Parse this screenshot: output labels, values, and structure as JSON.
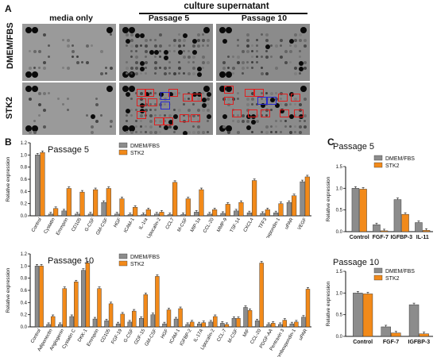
{
  "panel_labels": {
    "a": "A",
    "b": "B",
    "c": "C"
  },
  "panel_a": {
    "group_header": "culture supernatant",
    "col_headers": [
      "media only",
      "Passage 5",
      "Passage 10"
    ],
    "row_labels": [
      "DMEM/FBS",
      "STK2"
    ]
  },
  "colors": {
    "dmem": "#8c8c8c",
    "stk2": "#f28a1a",
    "highlight_red": "#e02020",
    "highlight_blue": "#2a2ad0"
  },
  "chart_data": [
    {
      "type": "bar",
      "title": "Passage 5",
      "ylabel": "Relative expression",
      "ylim": [
        0,
        1.2
      ],
      "yticks": [
        "0.0",
        "0.2",
        "0.4",
        "0.6",
        "0.8",
        "1.0",
        "1.2"
      ],
      "categories": [
        "Control",
        "Cystatin",
        "Emmprin",
        "CD105",
        "G-CSF",
        "GM-CSF",
        "HGF",
        "ICAM-1",
        "IL-1ra",
        "Lipocalin-2",
        "CCL7",
        "M-CSF",
        "MIP-1a",
        "CCL-20",
        "MMP-9",
        "TSF-14",
        "CXCL4",
        "TFF3",
        "Thrombospondin-1",
        "uPAR",
        "VEGF"
      ],
      "series": [
        {
          "name": "DMEM/FBS",
          "values": [
            1.0,
            0.03,
            0.08,
            0.03,
            0.03,
            0.22,
            0.03,
            0.02,
            0.02,
            0.03,
            0.02,
            0.02,
            0.06,
            0.03,
            0.04,
            0.08,
            0.05,
            0.04,
            0.05,
            0.22,
            0.56
          ]
        },
        {
          "name": "STK2",
          "values": [
            1.04,
            0.12,
            0.45,
            0.39,
            0.43,
            0.45,
            0.28,
            0.14,
            0.1,
            0.06,
            0.55,
            0.28,
            0.43,
            0.1,
            0.19,
            0.22,
            0.58,
            0.1,
            0.2,
            0.33,
            0.64
          ]
        }
      ],
      "legend": "top-center"
    },
    {
      "type": "bar",
      "title": "Passage 10",
      "ylabel": "Relative expression",
      "ylim": [
        0,
        1.2
      ],
      "yticks": [
        "0.0",
        "0.2",
        "0.4",
        "0.6",
        "0.8",
        "1.0",
        "1.2"
      ],
      "categories": [
        "Control",
        "Adiponectin",
        "Angiogenin",
        "Cystatin C",
        "DKK-1",
        "Emmprin",
        "CD105",
        "FGF-19",
        "G-CSF",
        "GDF-15",
        "GM-CSF",
        "HGF",
        "ICAM-1",
        "IGFBP-2",
        "IL-17A",
        "Lipocalin-2",
        "CCL-7",
        "M-CSF",
        "MIF",
        "CCL-20",
        "PDGF-AA",
        "Pentraxin 3",
        "Thrombospondin-1",
        "uPAR"
      ],
      "series": [
        {
          "name": "DMEM/FBS",
          "values": [
            1.0,
            0.04,
            0.04,
            0.17,
            0.93,
            0.13,
            0.1,
            0.05,
            0.08,
            0.14,
            0.2,
            0.05,
            0.13,
            0.04,
            0.05,
            0.08,
            0.06,
            0.14,
            0.32,
            0.1,
            0.04,
            0.04,
            0.05,
            0.16
          ]
        },
        {
          "name": "STK2",
          "values": [
            1.0,
            0.17,
            0.63,
            0.74,
            1.05,
            0.63,
            0.38,
            0.21,
            0.26,
            0.53,
            0.83,
            0.28,
            0.3,
            0.08,
            0.07,
            0.17,
            0.04,
            0.14,
            0.27,
            1.05,
            0.06,
            0.11,
            0.08,
            0.62
          ]
        }
      ],
      "legend": "top-center"
    },
    {
      "type": "bar",
      "title": "Passage 5",
      "ylabel": "Relative expression",
      "ylim": [
        0,
        1.5
      ],
      "yticks": [
        "0.0",
        "0.5",
        "1.0",
        "1.5"
      ],
      "categories": [
        "Control",
        "FGF-7",
        "IGFBP-3",
        "IL-11"
      ],
      "series": [
        {
          "name": "DMEM/FBS",
          "values": [
            1.0,
            0.16,
            0.74,
            0.21
          ]
        },
        {
          "name": "STK2",
          "values": [
            0.98,
            0.02,
            0.4,
            0.03
          ]
        }
      ],
      "legend": "top-right"
    },
    {
      "type": "bar",
      "title": "Passage 10",
      "ylabel": "Relative expression",
      "ylim": [
        0,
        1.5
      ],
      "yticks": [
        "0.0",
        "0.5",
        "1.0",
        "1.5"
      ],
      "categories": [
        "Control",
        "FGF-7",
        "IGFBP-3"
      ],
      "series": [
        {
          "name": "DMEM/FBS",
          "values": [
            1.0,
            0.22,
            0.73
          ]
        },
        {
          "name": "STK2",
          "values": [
            0.98,
            0.08,
            0.06
          ]
        }
      ],
      "legend": "top-right"
    }
  ]
}
